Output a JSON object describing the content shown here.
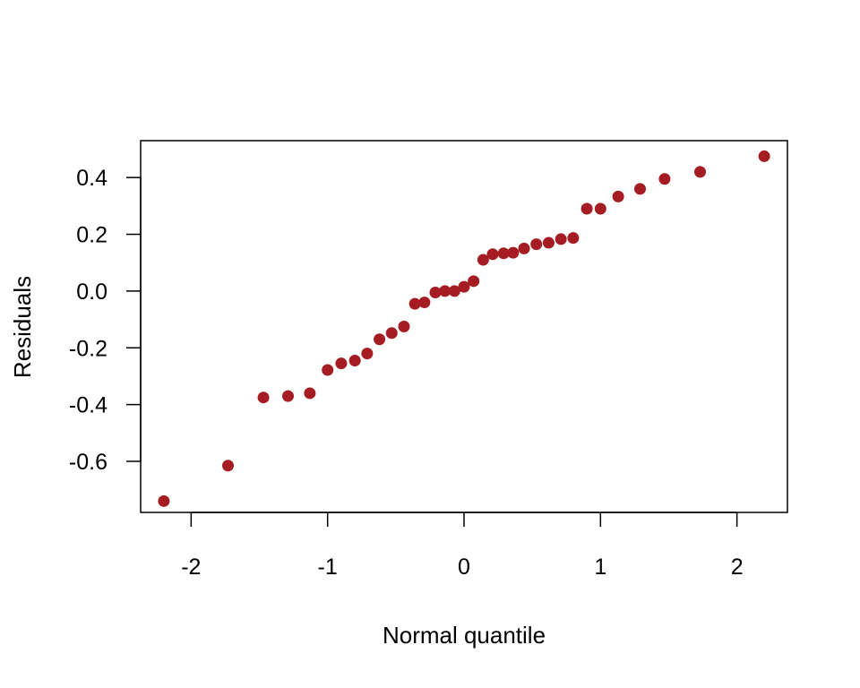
{
  "chart_data": {
    "type": "scatter",
    "title": "",
    "xlabel": "Normal quantile",
    "ylabel": "Residuals",
    "xlim": [
      -2.37,
      2.37
    ],
    "ylim": [
      -0.78,
      0.53
    ],
    "xticks": [
      -2,
      -1,
      0,
      1,
      2
    ],
    "xtick_labels": [
      "-2",
      "-1",
      "0",
      "1",
      "2"
    ],
    "yticks": [
      -0.6,
      -0.4,
      -0.2,
      0.0,
      0.2,
      0.4
    ],
    "ytick_labels": [
      "-0.6",
      "-0.4",
      "-0.2",
      "0.0",
      "0.2",
      "0.4"
    ],
    "grid": false,
    "point_color": "#A51C22",
    "points": [
      [
        -2.2,
        -0.74
      ],
      [
        -1.73,
        -0.615
      ],
      [
        -1.47,
        -0.375
      ],
      [
        -1.29,
        -0.37
      ],
      [
        -1.13,
        -0.36
      ],
      [
        -1.0,
        -0.278
      ],
      [
        -0.9,
        -0.255
      ],
      [
        -0.8,
        -0.245
      ],
      [
        -0.71,
        -0.22
      ],
      [
        -0.62,
        -0.17
      ],
      [
        -0.53,
        -0.148
      ],
      [
        -0.44,
        -0.125
      ],
      [
        -0.36,
        -0.045
      ],
      [
        -0.29,
        -0.04
      ],
      [
        -0.21,
        -0.005
      ],
      [
        -0.14,
        0.0
      ],
      [
        -0.07,
        0.0
      ],
      [
        0.0,
        0.015
      ],
      [
        0.07,
        0.035
      ],
      [
        0.14,
        0.11
      ],
      [
        0.21,
        0.13
      ],
      [
        0.29,
        0.133
      ],
      [
        0.36,
        0.135
      ],
      [
        0.44,
        0.15
      ],
      [
        0.53,
        0.165
      ],
      [
        0.62,
        0.17
      ],
      [
        0.71,
        0.183
      ],
      [
        0.8,
        0.187
      ],
      [
        0.9,
        0.29
      ],
      [
        1.0,
        0.29
      ],
      [
        1.13,
        0.333
      ],
      [
        1.29,
        0.36
      ],
      [
        1.47,
        0.395
      ],
      [
        1.73,
        0.42
      ],
      [
        2.2,
        0.475
      ]
    ]
  }
}
